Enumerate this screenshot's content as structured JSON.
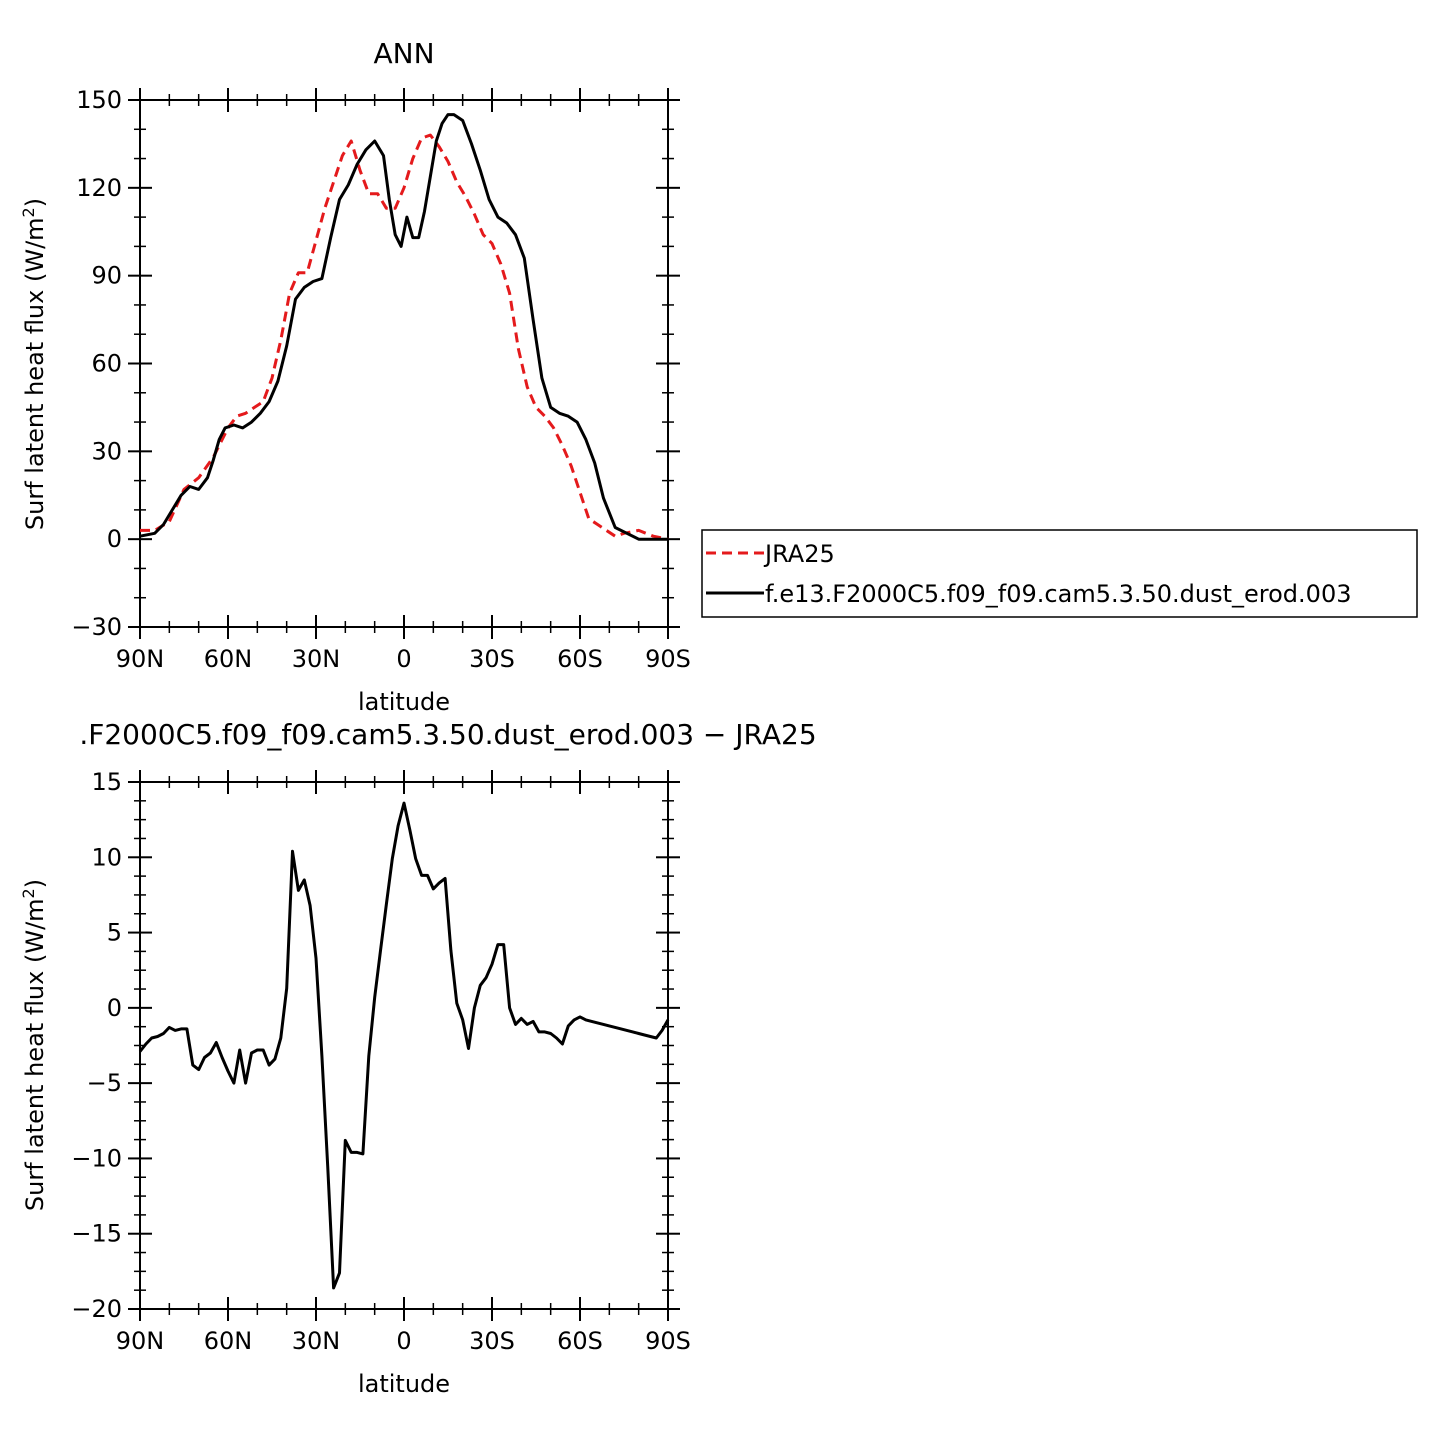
{
  "chart_data": [
    {
      "type": "line",
      "title": "ANN",
      "xlabel": "latitude",
      "ylabel": "Surf latent heat flux (W/m²)",
      "ylabel_parts": {
        "pre": "Surf latent heat flux (W/m",
        "sup": "2",
        "post": ")"
      },
      "xlim": [
        90,
        -90
      ],
      "ylim": [
        -30,
        150
      ],
      "xticks": [
        {
          "value": 90,
          "label": "90N"
        },
        {
          "value": 60,
          "label": "60N"
        },
        {
          "value": 30,
          "label": "30N"
        },
        {
          "value": 0,
          "label": "0"
        },
        {
          "value": -30,
          "label": "30S"
        },
        {
          "value": -60,
          "label": "60S"
        },
        {
          "value": -90,
          "label": "90S"
        }
      ],
      "yticks": [
        {
          "value": 150,
          "label": "150"
        },
        {
          "value": 120,
          "label": "120"
        },
        {
          "value": 90,
          "label": "90"
        },
        {
          "value": 60,
          "label": "60"
        },
        {
          "value": 30,
          "label": "30"
        },
        {
          "value": 0,
          "label": "0"
        },
        {
          "value": -30,
          "label": "−30"
        }
      ],
      "legend": "right",
      "series": [
        {
          "name": "JRA25",
          "color": "#e41a1c",
          "style": "dashed",
          "x": [
            90,
            85,
            80,
            75,
            70,
            65,
            60,
            57,
            54,
            51,
            48,
            45,
            42,
            39,
            36,
            33,
            30,
            27,
            24,
            21,
            18,
            15,
            12,
            9,
            6,
            3,
            0,
            -3,
            -6,
            -9,
            -12,
            -15,
            -18,
            -21,
            -24,
            -27,
            -30,
            -33,
            -36,
            -39,
            -42,
            -45,
            -48,
            -51,
            -54,
            -57,
            -60,
            -63,
            -66,
            -69,
            -72,
            -75,
            -80,
            -85,
            -90
          ],
          "y": [
            3,
            3,
            6,
            17,
            21,
            28,
            38,
            42,
            43,
            45,
            47,
            55,
            68,
            84,
            91,
            91,
            102,
            113,
            122,
            131,
            136,
            126,
            118,
            118,
            113,
            113,
            120,
            130,
            137,
            138,
            134,
            129,
            122,
            117,
            111,
            104,
            101,
            94,
            84,
            65,
            52,
            45,
            42,
            38,
            32,
            25,
            16,
            7,
            5,
            3,
            1,
            2,
            3,
            1,
            0
          ]
        },
        {
          "name": "f.e13.F2000C5.f09_f09.cam5.3.50.dust_erod.003",
          "color": "#000000",
          "style": "solid",
          "x": [
            90,
            85,
            82,
            79,
            76,
            73,
            70,
            67,
            65,
            63,
            61,
            58,
            55,
            52,
            49,
            46,
            43,
            40,
            37,
            34,
            31,
            28,
            25,
            22,
            19,
            16,
            13,
            10,
            7,
            5,
            3,
            1,
            -1,
            -3,
            -5,
            -7,
            -9,
            -11,
            -13,
            -15,
            -17,
            -20,
            -23,
            -26,
            -29,
            -32,
            -35,
            -38,
            -41,
            -44,
            -47,
            -50,
            -53,
            -56,
            -59,
            -62,
            -65,
            -68,
            -72,
            -76,
            -80,
            -85,
            -90
          ],
          "y": [
            1,
            2,
            5,
            10,
            15,
            18,
            17,
            21,
            27,
            34,
            38,
            39,
            38,
            40,
            43,
            47,
            54,
            66,
            82,
            86,
            88,
            89,
            103,
            116,
            121,
            128,
            133,
            136,
            131,
            116,
            104,
            100,
            110,
            103,
            103,
            112,
            124,
            136,
            142,
            145,
            145,
            143,
            135,
            126,
            116,
            110,
            108,
            104,
            96,
            75,
            55,
            45,
            43,
            42,
            40,
            34,
            26,
            14,
            4,
            2,
            0,
            0,
            0
          ]
        }
      ]
    },
    {
      "type": "line",
      "title": ".F2000C5.f09_f09.cam5.3.50.dust_erod.003 − JRA25",
      "xlabel": "latitude",
      "ylabel": "Surf latent heat flux (W/m²)",
      "ylabel_parts": {
        "pre": "Surf latent heat flux (W/m",
        "sup": "2",
        "post": ")"
      },
      "xlim": [
        90,
        -90
      ],
      "ylim": [
        -20,
        15
      ],
      "xticks": [
        {
          "value": 90,
          "label": "90N"
        },
        {
          "value": 60,
          "label": "60N"
        },
        {
          "value": 30,
          "label": "30N"
        },
        {
          "value": 0,
          "label": "0"
        },
        {
          "value": -30,
          "label": "30S"
        },
        {
          "value": -60,
          "label": "60S"
        },
        {
          "value": -90,
          "label": "90S"
        }
      ],
      "yticks": [
        {
          "value": 15,
          "label": "15"
        },
        {
          "value": 10,
          "label": "10"
        },
        {
          "value": 5,
          "label": "5"
        },
        {
          "value": 0,
          "label": "0"
        },
        {
          "value": -5,
          "label": "−5"
        },
        {
          "value": -10,
          "label": "−10"
        },
        {
          "value": -15,
          "label": "−15"
        },
        {
          "value": -20,
          "label": "−20"
        }
      ],
      "series": [
        {
          "name": "",
          "color": "#000000",
          "style": "solid",
          "x": [
            90,
            88,
            86,
            84,
            82,
            80,
            78,
            76,
            74,
            72,
            70,
            68,
            66,
            64,
            62,
            60,
            58,
            56,
            54,
            52,
            50,
            48,
            46,
            44,
            42,
            40,
            38,
            36,
            34,
            32,
            30,
            28,
            26,
            24,
            22,
            20,
            18,
            16,
            14,
            12,
            10,
            8,
            6,
            4,
            2,
            0,
            -2,
            -4,
            -6,
            -8,
            -10,
            -12,
            -14,
            -16,
            -18,
            -20,
            -22,
            -24,
            -26,
            -28,
            -30,
            -32,
            -34,
            -36,
            -38,
            -40,
            -42,
            -44,
            -46,
            -48,
            -50,
            -52,
            -54,
            -56,
            -58,
            -60,
            -62,
            -64,
            -66,
            -68,
            -70,
            -72,
            -74,
            -76,
            -78,
            -80,
            -82,
            -84,
            -86,
            -88,
            -90
          ],
          "y": [
            -2.9,
            -2.4,
            -2.0,
            -1.9,
            -1.7,
            -1.3,
            -1.5,
            -1.4,
            -1.4,
            -3.8,
            -4.1,
            -3.3,
            -3.0,
            -2.3,
            -3.3,
            -4.2,
            -5.0,
            -2.8,
            -5.0,
            -3.0,
            -2.8,
            -2.8,
            -3.8,
            -3.4,
            -2.0,
            1.3,
            10.4,
            7.8,
            8.5,
            6.8,
            3.3,
            -3.2,
            -10.5,
            -18.6,
            -17.6,
            -8.8,
            -9.6,
            -9.6,
            -9.7,
            -3.2,
            0.7,
            3.8,
            6.9,
            9.9,
            12.1,
            13.6,
            11.8,
            9.9,
            8.8,
            8.8,
            7.9,
            8.3,
            8.6,
            3.8,
            0.3,
            -0.8,
            -2.7,
            0.0,
            1.5,
            2.0,
            2.9,
            4.2,
            4.2,
            0.0,
            -1.1,
            -0.7,
            -1.1,
            -0.9,
            -1.6,
            -1.6,
            -1.7,
            -2.0,
            -2.4,
            -1.2,
            -0.8,
            -0.6,
            -0.8,
            -0.9,
            -1.0,
            -1.1,
            -1.2,
            -1.3,
            -1.4,
            -1.5,
            -1.6,
            -1.7,
            -1.8,
            -1.9,
            -2.0,
            -1.5,
            -0.8
          ]
        }
      ]
    }
  ]
}
